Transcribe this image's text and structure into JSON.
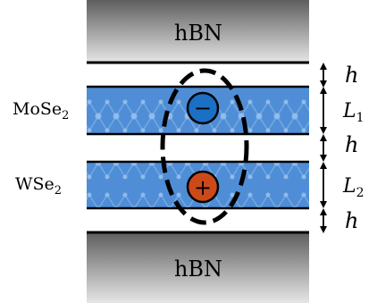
{
  "diagram": {
    "layers": {
      "top_substrate": {
        "label": "hBN"
      },
      "bottom_substrate": {
        "label": "hBN"
      },
      "layer1": {
        "label_main": "MoSe",
        "label_sub": "2"
      },
      "layer2": {
        "label_main": "WSe",
        "label_sub": "2"
      }
    },
    "dimensions": {
      "gap": "h",
      "thickness1": {
        "main": "L",
        "sub": "1"
      },
      "thickness2": {
        "main": "L",
        "sub": "2"
      }
    },
    "charges": {
      "electron": "−",
      "hole": "+"
    },
    "colors": {
      "layer_fill": "#4f8ed6",
      "electron": "#1b6fc4",
      "hole": "#cc4a1a",
      "substrate_dark": "#5e5e5e",
      "substrate_light": "#e0e0e0"
    }
  }
}
